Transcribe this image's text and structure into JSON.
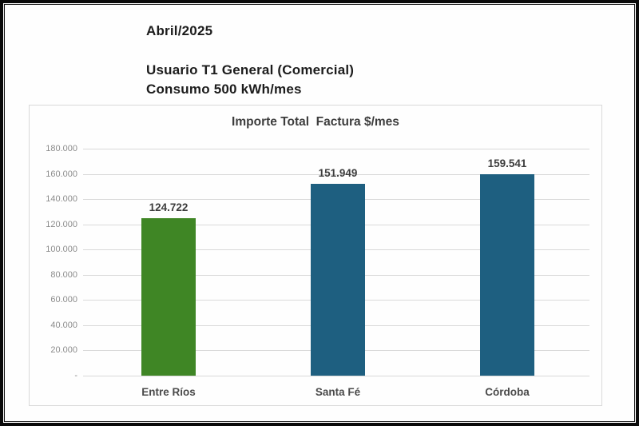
{
  "header": {
    "date": "Abril/2025",
    "user_line": "Usuario T1 General (Comercial)",
    "consumption_line": "Consumo 500 kWh/mes"
  },
  "chart_data": {
    "type": "bar",
    "title": "Importe Total  Factura $/mes",
    "categories": [
      "Entre Ríos",
      "Santa Fé",
      "Córdoba"
    ],
    "values": [
      124722,
      151949,
      159541
    ],
    "value_labels": [
      "124.722",
      "151.949",
      "159.541"
    ],
    "bar_colors": [
      "#3f8625",
      "#1e5f80",
      "#1e5f80"
    ],
    "xlabel": "",
    "ylabel": "",
    "ylim": [
      0,
      180000
    ],
    "ytick_interval": 20000,
    "ytick_labels": [
      "180.000",
      "160.000",
      "140.000",
      "120.000",
      "100.000",
      "80.000",
      "60.000",
      "40.000",
      "20.000",
      "-"
    ],
    "grid": true,
    "legend": false
  },
  "colors": {
    "frame_border": "#0a0a0a",
    "panel_border": "#d9d9d9",
    "gridline": "#d9d9d9",
    "title_text": "#3d3d3d",
    "tick_text": "#8c8c8c",
    "green_bar": "#3f8625",
    "blue_bar": "#1e5f80"
  }
}
